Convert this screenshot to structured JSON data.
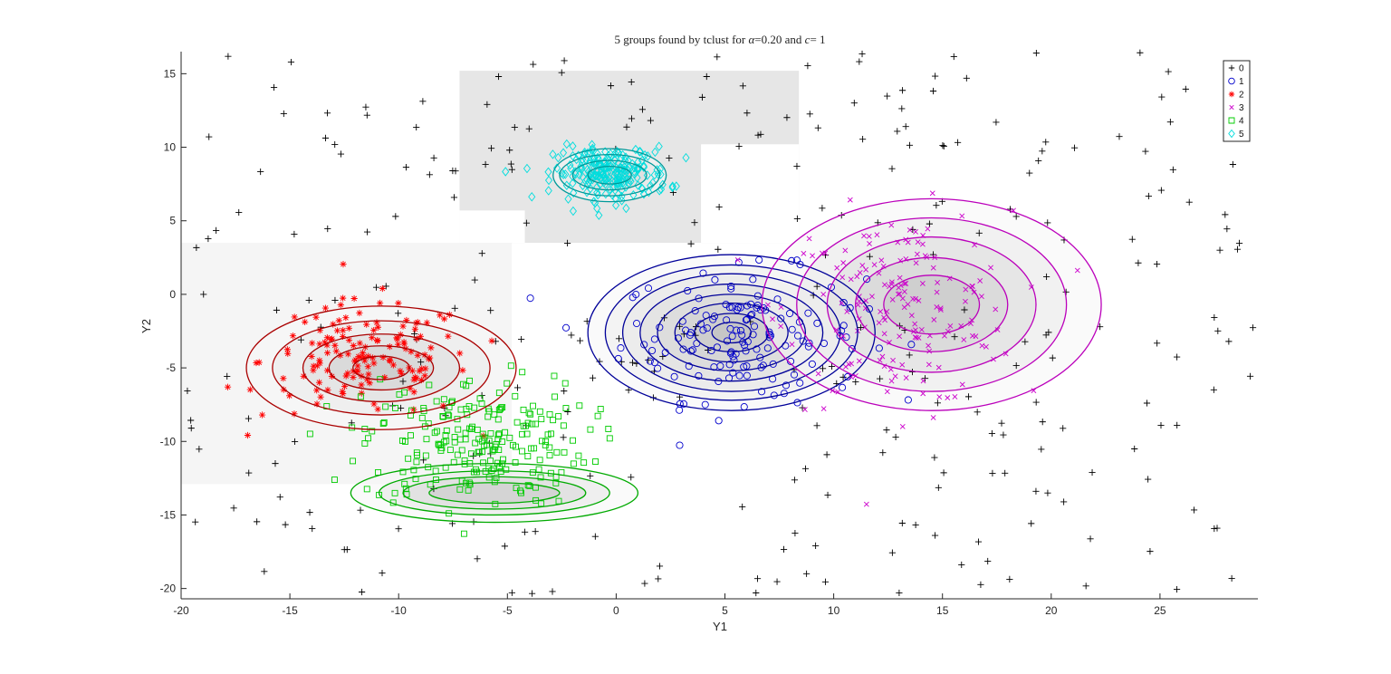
{
  "chart_data": {
    "type": "scatter",
    "title_prefix": "5 groups found by tclust for ",
    "title_alpha_symbol": "α",
    "title_alpha_value": "=0.20 and ",
    "title_c_symbol": "c",
    "title_c_value": "= 1",
    "xlabel": "Y1",
    "ylabel": "Y2",
    "xlim": [
      -20,
      29.5
    ],
    "ylim": [
      -20.7,
      16.5
    ],
    "xticks": [
      -20,
      -15,
      -10,
      -5,
      0,
      5,
      10,
      15,
      20,
      25
    ],
    "yticks": [
      -20,
      -15,
      -10,
      -5,
      0,
      5,
      10,
      15
    ],
    "legend_position": "top-right",
    "colors": {
      "group0": "#000000",
      "group1": "#0000cc",
      "group2": "#ff0000",
      "group3": "#cc00cc",
      "group4": "#00cc00",
      "group5": "#00dddd",
      "contour1": "#000099",
      "contour2": "#aa0000",
      "contour3": "#bb00bb",
      "contour4": "#00aa00",
      "contour5": "#009999",
      "region_light": "#f5f5f5",
      "region_dark": "#e6e6e6"
    },
    "series": [
      {
        "name": "0",
        "marker": "plus",
        "n": 320,
        "distribution": "uniform",
        "xrange": [
          -20,
          29.5
        ],
        "yrange": [
          -20.5,
          16.5
        ]
      },
      {
        "name": "1",
        "marker": "circle",
        "n": 150,
        "center": [
          5.8,
          -2.8
        ],
        "sd": [
          2.8,
          2.2
        ]
      },
      {
        "name": "2",
        "marker": "asterisk",
        "n": 150,
        "center": [
          -11.5,
          -4.5
        ],
        "sd": [
          2.4,
          2.0
        ]
      },
      {
        "name": "3",
        "marker": "cross",
        "n": 170,
        "center": [
          13.0,
          -1.0
        ],
        "sd": [
          2.6,
          3.3
        ]
      },
      {
        "name": "4",
        "marker": "square",
        "n": 230,
        "center": [
          -6.5,
          -10.0
        ],
        "sd": [
          2.6,
          2.2
        ]
      },
      {
        "name": "5",
        "marker": "diamond",
        "n": 220,
        "center": [
          -0.2,
          8.2
        ],
        "sd": [
          1.3,
          0.9
        ]
      }
    ],
    "regions": [
      {
        "group": "2",
        "fill": "light",
        "x": [
          -20,
          -4.8
        ],
        "y": [
          -12.9,
          3.5
        ]
      },
      {
        "group": "5",
        "fill": "dark",
        "x": [
          -7.2,
          8.4
        ],
        "y": [
          3.5,
          15.2
        ],
        "cutouts": [
          {
            "x": [
              -7.2,
              -4.2
            ],
            "y": [
              3.5,
              5.7
            ]
          },
          {
            "x": [
              3.9,
              8.4
            ],
            "y": [
              3.5,
              10.2
            ]
          }
        ]
      }
    ],
    "contours": [
      {
        "group": "1",
        "center": [
          5.3,
          -2.6
        ],
        "rx": [
          0.9,
          1.7,
          2.6,
          3.4,
          4.2,
          5.0,
          5.8,
          6.6
        ],
        "ry": [
          0.7,
          1.3,
          2.0,
          2.6,
          3.3,
          4.0,
          4.6,
          5.3
        ]
      },
      {
        "group": "2",
        "center": [
          -10.8,
          -5.0
        ],
        "rx": [
          1.3,
          2.4,
          3.6,
          5.0,
          6.2
        ],
        "ry": [
          0.8,
          1.5,
          2.3,
          3.2,
          4.2
        ]
      },
      {
        "group": "3",
        "center": [
          14.5,
          -0.7
        ],
        "rx": [
          2.2,
          3.5,
          4.8,
          6.2,
          7.8
        ],
        "ry": [
          2.0,
          3.2,
          4.6,
          5.9,
          7.2
        ]
      },
      {
        "group": "4",
        "center": [
          -5.6,
          -13.5
        ],
        "rx": [
          3.0,
          4.2,
          5.3,
          6.6
        ],
        "ry": [
          0.7,
          1.1,
          1.5,
          2.0
        ]
      },
      {
        "group": "5",
        "center": [
          -0.3,
          8.1
        ],
        "rx": [
          1.0,
          1.7,
          2.3,
          2.6
        ],
        "ry": [
          0.6,
          1.0,
          1.4,
          1.8
        ]
      }
    ]
  }
}
